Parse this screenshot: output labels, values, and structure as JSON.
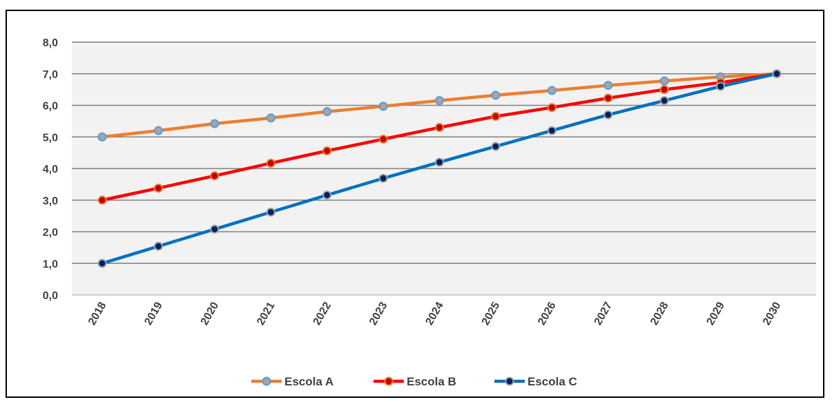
{
  "chart_data": {
    "type": "line",
    "title": "",
    "xlabel": "",
    "ylabel": "",
    "x": [
      "2018",
      "2019",
      "2020",
      "2021",
      "2022",
      "2023",
      "2024",
      "2025",
      "2026",
      "2027",
      "2028",
      "2029",
      "2030"
    ],
    "ylim": [
      0,
      8
    ],
    "y_ticks": [
      "0,0",
      "1,0",
      "2,0",
      "3,0",
      "4,0",
      "5,0",
      "6,0",
      "7,0",
      "8,0"
    ],
    "grid": true,
    "legend_position": "bottom",
    "plot_background": "#F2F2F2",
    "series": [
      {
        "name": "Escola A",
        "color": "#ED7D31",
        "marker_fill": "#A5A5A5",
        "marker_edge": "#5B9BD5",
        "values": [
          5.0,
          5.2,
          5.42,
          5.6,
          5.8,
          5.97,
          6.15,
          6.32,
          6.47,
          6.63,
          6.77,
          6.9,
          7.0
        ]
      },
      {
        "name": "Escola B",
        "color": "#FF0000",
        "marker_fill": "#C00000",
        "marker_edge": "#ED7D31",
        "values": [
          3.0,
          3.38,
          3.77,
          4.17,
          4.56,
          4.93,
          5.3,
          5.65,
          5.93,
          6.23,
          6.5,
          6.72,
          7.0
        ]
      },
      {
        "name": "Escola C",
        "color": "#0070C0",
        "marker_fill": "#002060",
        "marker_edge": "#A5A5A5",
        "values": [
          1.0,
          1.54,
          2.08,
          2.62,
          3.16,
          3.69,
          4.2,
          4.7,
          5.2,
          5.7,
          6.15,
          6.6,
          7.0
        ]
      }
    ]
  }
}
